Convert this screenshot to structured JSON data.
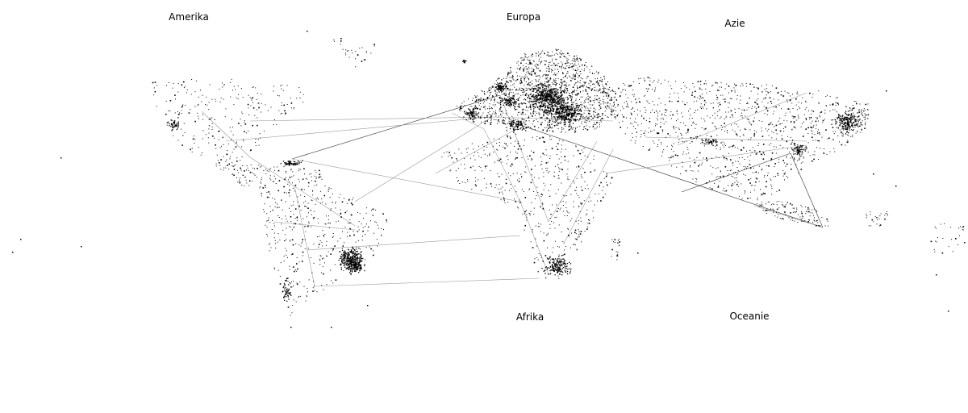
{
  "map": {
    "type": "world-dot-map",
    "background": "#ffffff",
    "dot_color": "#000000",
    "line_color": "#9a9a9a",
    "dark_line_color": "#333333",
    "regions": [
      {
        "key": "amerika",
        "label": "Amerika"
      },
      {
        "key": "europa",
        "label": "Europa"
      },
      {
        "key": "azie",
        "label": "Azie"
      },
      {
        "key": "afrika",
        "label": "Afrika"
      },
      {
        "key": "oceanie",
        "label": "Oceanie"
      }
    ]
  }
}
